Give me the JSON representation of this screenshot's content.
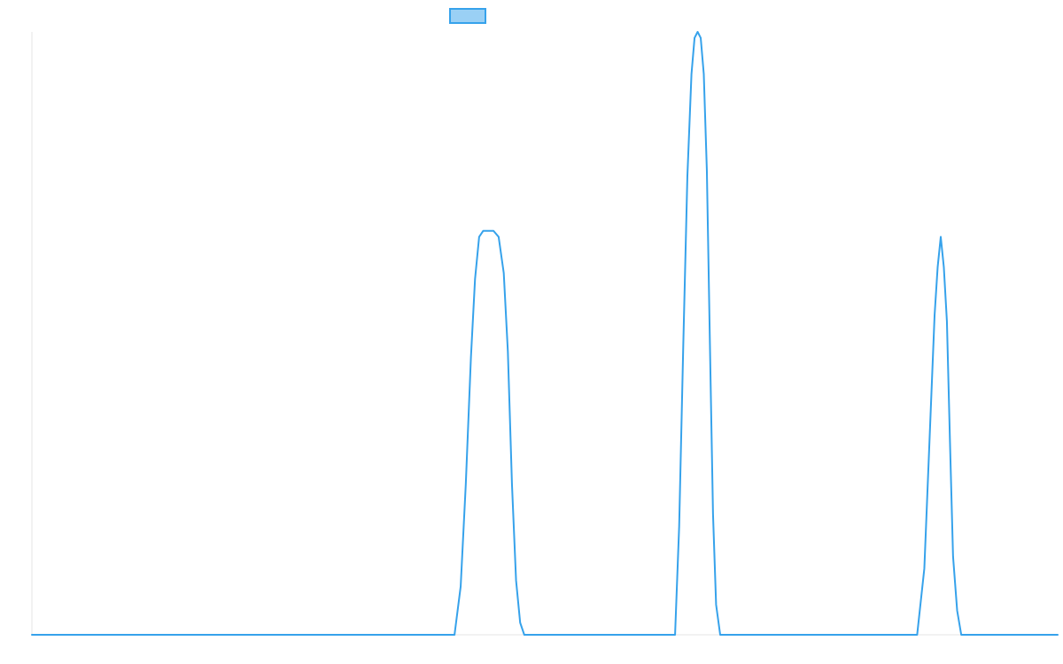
{
  "chart_data": {
    "type": "line",
    "title": "",
    "xlabel": "",
    "ylabel": "",
    "grid": false,
    "legend_position": "top",
    "xlim": [
      0,
      1000
    ],
    "ylim": [
      0,
      100
    ],
    "colors": {
      "line": "#36a2eb",
      "fill": "#9ad0f5",
      "axis": "#e6e6e6"
    },
    "series": [
      {
        "name": "",
        "x": [
          0,
          412,
          418,
          423,
          428,
          432,
          436,
          440,
          445,
          450,
          455,
          460,
          464,
          468,
          472,
          476,
          480,
          485,
          490,
          500,
          600,
          627,
          631,
          635,
          639,
          643,
          646,
          649,
          652,
          655,
          658,
          661,
          664,
          667,
          671,
          675,
          680,
          690,
          750,
          863,
          870,
          875,
          880,
          883,
          886,
          889,
          892,
          895,
          898,
          902,
          906,
          911,
          917,
          950,
          1000
        ],
        "values": [
          0,
          0,
          8,
          25,
          46,
          59,
          66,
          67,
          67,
          67,
          66,
          60,
          47,
          25,
          9,
          2,
          0,
          0,
          0,
          0,
          0,
          0,
          18,
          48,
          76,
          93,
          99,
          100,
          99,
          93,
          77,
          48,
          20,
          5,
          0,
          0,
          0,
          0,
          0,
          0,
          11,
          32,
          53,
          61,
          66,
          61,
          52,
          32,
          13,
          4,
          0,
          0,
          0,
          0,
          0
        ]
      }
    ]
  }
}
